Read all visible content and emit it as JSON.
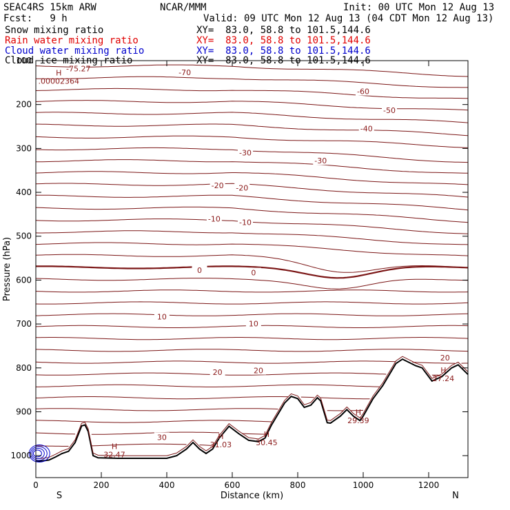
{
  "header": {
    "model": "SEAC4RS 15km ARW",
    "center": "NCAR/MMM",
    "init": "Init: 00 UTC Mon 12 Aug 13",
    "fcst": "Fcst:   9 h",
    "valid": "Valid: 09 UTC Mon 12 Aug 13 (04 CDT Mon 12 Aug 13)"
  },
  "fields": [
    {
      "label": "Snow mixing ratio",
      "xy": "XY=  83.0, 58.8 to 101.5,144.6",
      "color": "#000000"
    },
    {
      "label": "Rain water mixing ratio",
      "xy": "XY=  83.0, 58.8 to 101.5,144.6",
      "color": "#e00000"
    },
    {
      "label": "Cloud water mixing ratio",
      "xy": "XY=  83.0, 58.8 to 101.5,144.6",
      "color": "#0000cc"
    },
    {
      "label": "Cloud ice mixing ratio",
      "xy": "XY=  83.0, 58.8 to 101.5,144.6",
      "color": "#000000"
    }
  ],
  "chart_data": {
    "type": "contour-cross-section",
    "xlabel": "Distance (km)",
    "ylabel": "Pressure (hPa)",
    "xlim": [
      0,
      1320
    ],
    "ylim": [
      100,
      1050
    ],
    "x_ticks": [
      0,
      200,
      400,
      600,
      800,
      1000,
      1200
    ],
    "y_ticks": [
      100,
      200,
      300,
      400,
      500,
      600,
      700,
      800,
      900,
      1000
    ],
    "x_end_labels": {
      "left": "S",
      "right": "N"
    },
    "contour_color": "#7a1414",
    "isotherm_levels_degC": [
      -70,
      -60,
      -50,
      -40,
      -30,
      -20,
      -10,
      0,
      10,
      20,
      30
    ],
    "contour_labels": [
      {
        "text": "-75.27",
        "x": 130,
        "p": 118
      },
      {
        "text": "-70",
        "x": 455,
        "p": 127
      },
      {
        "text": "-60",
        "x": 1000,
        "p": 170
      },
      {
        "text": "-50",
        "x": 1080,
        "p": 213
      },
      {
        "text": "-40",
        "x": 1010,
        "p": 255
      },
      {
        "text": "-30",
        "x": 640,
        "p": 310
      },
      {
        "text": "-30",
        "x": 870,
        "p": 328
      },
      {
        "text": "-20",
        "x": 555,
        "p": 384
      },
      {
        "text": "-20",
        "x": 630,
        "p": 390
      },
      {
        "text": "-10",
        "x": 545,
        "p": 460
      },
      {
        "text": "-10",
        "x": 640,
        "p": 468
      },
      {
        "text": "0",
        "x": 500,
        "p": 577
      },
      {
        "text": "0",
        "x": 665,
        "p": 583
      },
      {
        "text": "10",
        "x": 385,
        "p": 683
      },
      {
        "text": "10",
        "x": 665,
        "p": 699
      },
      {
        "text": "20",
        "x": 555,
        "p": 810
      },
      {
        "text": "20",
        "x": 680,
        "p": 806
      },
      {
        "text": "20",
        "x": 1250,
        "p": 777
      },
      {
        "text": "30",
        "x": 385,
        "p": 958
      }
    ],
    "extrema": [
      {
        "kind": "H",
        "value": ".00002364",
        "x": 70,
        "p": 134
      },
      {
        "kind": "H",
        "value": "32.47",
        "x": 240,
        "p": 985
      },
      {
        "kind": "H",
        "value": "31.03",
        "x": 565,
        "p": 962
      },
      {
        "kind": "H",
        "value": "30.45",
        "x": 705,
        "p": 957
      },
      {
        "kind": "H",
        "value": "29.39",
        "x": 985,
        "p": 907
      },
      {
        "kind": "H",
        "value": "27.24",
        "x": 1245,
        "p": 811
      }
    ],
    "terrain": [
      [
        0,
        1013
      ],
      [
        20,
        1012
      ],
      [
        40,
        1010
      ],
      [
        60,
        1003
      ],
      [
        80,
        995
      ],
      [
        100,
        990
      ],
      [
        120,
        970
      ],
      [
        140,
        932
      ],
      [
        150,
        930
      ],
      [
        160,
        945
      ],
      [
        175,
        1000
      ],
      [
        190,
        1005
      ],
      [
        250,
        1006
      ],
      [
        300,
        1006
      ],
      [
        350,
        1006
      ],
      [
        400,
        1006
      ],
      [
        430,
        1000
      ],
      [
        460,
        985
      ],
      [
        480,
        970
      ],
      [
        500,
        985
      ],
      [
        520,
        995
      ],
      [
        540,
        985
      ],
      [
        560,
        960
      ],
      [
        590,
        933
      ],
      [
        620,
        950
      ],
      [
        650,
        965
      ],
      [
        680,
        968
      ],
      [
        700,
        960
      ],
      [
        720,
        930
      ],
      [
        760,
        880
      ],
      [
        780,
        865
      ],
      [
        800,
        870
      ],
      [
        820,
        890
      ],
      [
        840,
        885
      ],
      [
        860,
        868
      ],
      [
        870,
        875
      ],
      [
        890,
        925
      ],
      [
        900,
        926
      ],
      [
        930,
        910
      ],
      [
        950,
        895
      ],
      [
        970,
        910
      ],
      [
        990,
        920
      ],
      [
        1000,
        910
      ],
      [
        1030,
        870
      ],
      [
        1060,
        840
      ],
      [
        1100,
        790
      ],
      [
        1120,
        780
      ],
      [
        1160,
        795
      ],
      [
        1180,
        800
      ],
      [
        1210,
        830
      ],
      [
        1240,
        820
      ],
      [
        1270,
        800
      ],
      [
        1290,
        793
      ],
      [
        1320,
        815
      ]
    ],
    "cloud_water_region": {
      "x": [
        0,
        40
      ],
      "p": [
        970,
        1010
      ],
      "color": "#0000cc"
    }
  }
}
